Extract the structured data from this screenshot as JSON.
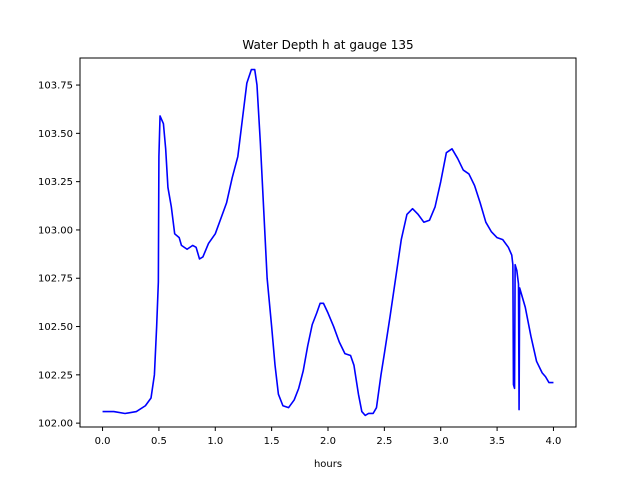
{
  "chart_data": {
    "type": "line",
    "title": "Water Depth h at gauge 135",
    "xlabel": "hours",
    "ylabel": "",
    "xlim": [
      -0.2,
      4.2
    ],
    "ylim": [
      101.98,
      103.89
    ],
    "xticks": [
      0.0,
      0.5,
      1.0,
      1.5,
      2.0,
      2.5,
      3.0,
      3.5,
      4.0
    ],
    "xtick_labels": [
      "0.0",
      "0.5",
      "1.0",
      "1.5",
      "2.0",
      "2.5",
      "3.0",
      "3.5",
      "4.0"
    ],
    "yticks": [
      102.0,
      102.25,
      102.5,
      102.75,
      103.0,
      103.25,
      103.5,
      103.75
    ],
    "ytick_labels": [
      "102.00",
      "102.25",
      "102.50",
      "102.75",
      "103.00",
      "103.25",
      "103.50",
      "103.75"
    ],
    "grid": false,
    "series": [
      {
        "name": "",
        "color": "#0000ff",
        "points": [
          [
            0.0,
            102.06
          ],
          [
            0.1,
            102.06
          ],
          [
            0.2,
            102.05
          ],
          [
            0.3,
            102.06
          ],
          [
            0.38,
            102.09
          ],
          [
            0.43,
            102.13
          ],
          [
            0.46,
            102.25
          ],
          [
            0.48,
            102.5
          ],
          [
            0.495,
            102.73
          ],
          [
            0.5,
            103.38
          ],
          [
            0.51,
            103.59
          ],
          [
            0.54,
            103.55
          ],
          [
            0.56,
            103.42
          ],
          [
            0.58,
            103.22
          ],
          [
            0.61,
            103.12
          ],
          [
            0.64,
            102.98
          ],
          [
            0.68,
            102.96
          ],
          [
            0.7,
            102.92
          ],
          [
            0.75,
            102.9
          ],
          [
            0.8,
            102.92
          ],
          [
            0.83,
            102.91
          ],
          [
            0.86,
            102.85
          ],
          [
            0.89,
            102.86
          ],
          [
            0.94,
            102.93
          ],
          [
            1.0,
            102.98
          ],
          [
            1.05,
            103.06
          ],
          [
            1.1,
            103.14
          ],
          [
            1.15,
            103.27
          ],
          [
            1.2,
            103.38
          ],
          [
            1.24,
            103.57
          ],
          [
            1.28,
            103.76
          ],
          [
            1.32,
            103.83
          ],
          [
            1.35,
            103.83
          ],
          [
            1.37,
            103.75
          ],
          [
            1.4,
            103.45
          ],
          [
            1.43,
            103.1
          ],
          [
            1.46,
            102.75
          ],
          [
            1.5,
            102.5
          ],
          [
            1.53,
            102.3
          ],
          [
            1.56,
            102.15
          ],
          [
            1.6,
            102.09
          ],
          [
            1.65,
            102.08
          ],
          [
            1.7,
            102.12
          ],
          [
            1.74,
            102.18
          ],
          [
            1.78,
            102.27
          ],
          [
            1.82,
            102.4
          ],
          [
            1.86,
            102.51
          ],
          [
            1.9,
            102.57
          ],
          [
            1.93,
            102.62
          ],
          [
            1.96,
            102.62
          ],
          [
            2.0,
            102.57
          ],
          [
            2.05,
            102.5
          ],
          [
            2.1,
            102.42
          ],
          [
            2.15,
            102.36
          ],
          [
            2.2,
            102.35
          ],
          [
            2.23,
            102.3
          ],
          [
            2.27,
            102.15
          ],
          [
            2.3,
            102.06
          ],
          [
            2.33,
            102.04
          ],
          [
            2.36,
            102.05
          ],
          [
            2.4,
            102.05
          ],
          [
            2.43,
            102.08
          ],
          [
            2.47,
            102.25
          ],
          [
            2.5,
            102.36
          ],
          [
            2.55,
            102.55
          ],
          [
            2.6,
            102.75
          ],
          [
            2.65,
            102.95
          ],
          [
            2.7,
            103.08
          ],
          [
            2.75,
            103.11
          ],
          [
            2.8,
            103.08
          ],
          [
            2.85,
            103.04
          ],
          [
            2.9,
            103.05
          ],
          [
            2.95,
            103.12
          ],
          [
            3.0,
            103.25
          ],
          [
            3.05,
            103.4
          ],
          [
            3.1,
            103.42
          ],
          [
            3.15,
            103.37
          ],
          [
            3.2,
            103.31
          ],
          [
            3.25,
            103.29
          ],
          [
            3.3,
            103.23
          ],
          [
            3.35,
            103.14
          ],
          [
            3.4,
            103.04
          ],
          [
            3.45,
            102.99
          ],
          [
            3.5,
            102.96
          ],
          [
            3.55,
            102.95
          ],
          [
            3.6,
            102.91
          ],
          [
            3.63,
            102.87
          ],
          [
            3.64,
            102.82
          ],
          [
            3.645,
            102.2
          ],
          [
            3.655,
            102.18
          ],
          [
            3.66,
            102.82
          ],
          [
            3.675,
            102.79
          ],
          [
            3.69,
            102.72
          ],
          [
            3.695,
            102.07
          ],
          [
            3.7,
            102.7
          ],
          [
            3.75,
            102.6
          ],
          [
            3.8,
            102.45
          ],
          [
            3.85,
            102.32
          ],
          [
            3.9,
            102.26
          ],
          [
            3.93,
            102.24
          ],
          [
            3.96,
            102.21
          ],
          [
            4.0,
            102.21
          ]
        ]
      }
    ]
  }
}
